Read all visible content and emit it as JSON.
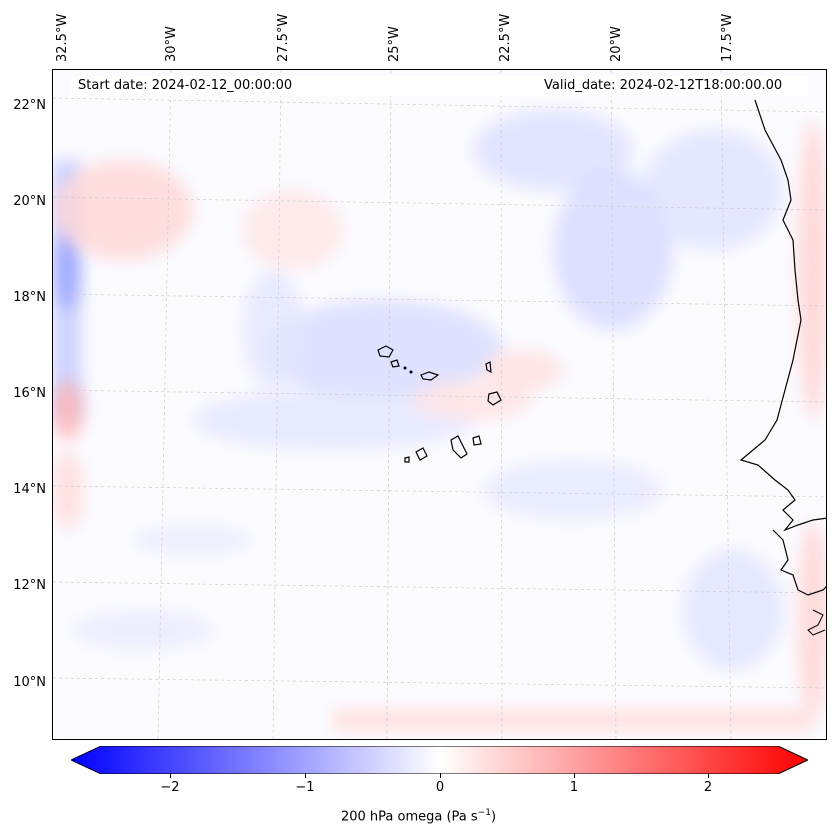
{
  "map": {
    "start_date_text": "Start date: 2024-02-12_00:00:00",
    "valid_date_text": "Valid_date: 2024-02-12T18:00:00.00",
    "lon_labels": [
      "32.5°W",
      "30°W",
      "27.5°W",
      "25°W",
      "22.5°W",
      "20°W",
      "17.5°W"
    ],
    "lat_labels": [
      "22°N",
      "20°N",
      "18°N",
      "16°N",
      "14°N",
      "12°N",
      "10°N"
    ],
    "colors": {
      "neg_max": "#0000ff",
      "pos_max": "#ff0000",
      "zero": "#ffffff",
      "coastline": "#000000"
    }
  },
  "colorbar": {
    "ticks": [
      "−2",
      "−1",
      "0",
      "1",
      "2"
    ],
    "title_prefix": "200 hPa omega (Pa s",
    "title_exp": "−1",
    "title_suffix": ")"
  }
}
